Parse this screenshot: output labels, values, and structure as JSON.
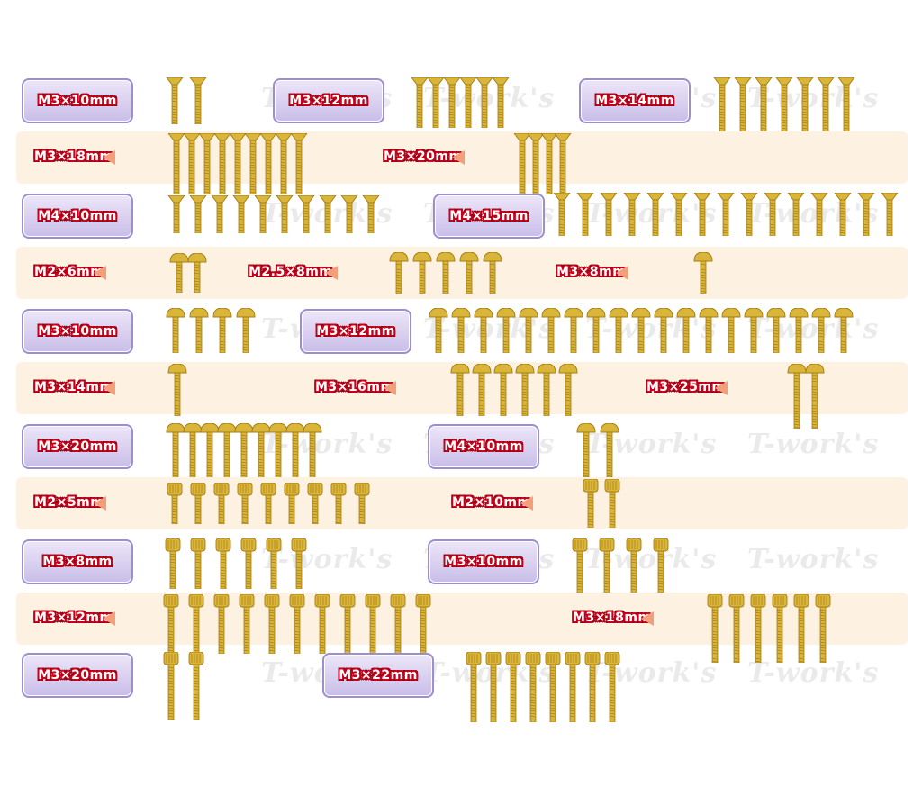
{
  "watermark": "T-work's",
  "colors": {
    "gold": "#d9b53a",
    "gold_dark": "#a57c12",
    "band": "#fdf1e2",
    "tag": "#c9bde9",
    "arrow": "#f3a07a",
    "label_outline": "#c8001a"
  },
  "rows": [
    {
      "style": "plain",
      "groups": [
        {
          "label": "M3×10mm",
          "head": "flat",
          "count": 2
        },
        {
          "label": "M3×12mm",
          "head": "flat",
          "count": 6
        },
        {
          "label": "M3×14mm",
          "head": "flat",
          "count": 7
        }
      ]
    },
    {
      "style": "band",
      "groups": [
        {
          "label": "M3×18mm",
          "head": "flat",
          "count": 9
        },
        {
          "label": "M3×20mm",
          "head": "flat",
          "count": 4
        }
      ]
    },
    {
      "style": "plain",
      "groups": [
        {
          "label": "M4×10mm",
          "head": "flat",
          "count": 10
        },
        {
          "label": "M4×15mm",
          "head": "flat",
          "count": 16
        }
      ]
    },
    {
      "style": "band",
      "groups": [
        {
          "label": "M2×6mm",
          "head": "button",
          "count": 2
        },
        {
          "label": "M2.5×8mm",
          "head": "button",
          "count": 5
        },
        {
          "label": "M3×8mm",
          "head": "button",
          "count": 1
        }
      ]
    },
    {
      "style": "plain",
      "groups": [
        {
          "label": "M3×10mm",
          "head": "button",
          "count": 4
        },
        {
          "label": "M3×12mm",
          "head": "button",
          "count": 19
        }
      ]
    },
    {
      "style": "band",
      "groups": [
        {
          "label": "M3×14mm",
          "head": "button",
          "count": 1
        },
        {
          "label": "M3×16mm",
          "head": "button",
          "count": 6
        },
        {
          "label": "M3×25mm",
          "head": "button",
          "count": 2
        }
      ]
    },
    {
      "style": "plain",
      "groups": [
        {
          "label": "M3×20mm",
          "head": "button",
          "count": 9
        },
        {
          "label": "M4×10mm",
          "head": "button",
          "count": 2
        }
      ]
    },
    {
      "style": "band",
      "groups": [
        {
          "label": "M2×5mm",
          "head": "cap",
          "count": 9
        },
        {
          "label": "M2×10mm",
          "head": "cap",
          "count": 2
        }
      ]
    },
    {
      "style": "plain",
      "groups": [
        {
          "label": "M3×8mm",
          "head": "cap",
          "count": 6
        },
        {
          "label": "M3×10mm",
          "head": "cap",
          "count": 4
        }
      ]
    },
    {
      "style": "band",
      "groups": [
        {
          "label": "M3×12mm",
          "head": "cap",
          "count": 11
        },
        {
          "label": "M3×18mm",
          "head": "cap",
          "count": 6
        }
      ]
    },
    {
      "style": "plain",
      "groups": [
        {
          "label": "M3×20mm",
          "head": "cap",
          "count": 2
        },
        {
          "label": "M3×22mm",
          "head": "cap",
          "count": 8
        }
      ]
    }
  ]
}
